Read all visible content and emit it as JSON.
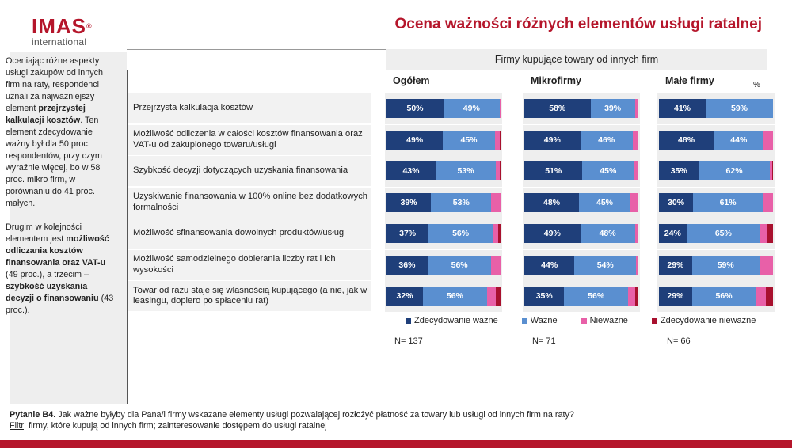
{
  "header": {
    "logo_main": "IMAS",
    "logo_reg": "®",
    "logo_sub": "international",
    "title": "Ocena ważności różnych elementów usługi ratalnej"
  },
  "sidebar": {
    "p1_a": "Oceniając różne aspekty usługi zakupów od innych firm na raty, respondenci uznali za najważniejszy element ",
    "p1_b": "przejrzystej kalkulacji kosztów",
    "p1_c": ". Ten element zdecydowanie ważny był dla 50 proc. respondentów, przy czym wyraźnie więcej, bo w 58 proc. mikro firm, w porównaniu do 41 proc. małych.",
    "p2_a": "Drugim w kolejności elementem jest ",
    "p2_b": "możliwość odliczania kosztów finansowania oraz VAT-u",
    "p2_c": " (49 proc.), a trzecim – ",
    "p2_d": "szybkość uzyskania decyzji o finansowaniu",
    "p2_e": " (43 proc.)."
  },
  "footnote": {
    "q_label": "Pytanie B4.",
    "q_text": " Jak ważne byłyby dla Pana/i firmy wskazane elementy usługi pozwalającej rozłożyć płatność za towary lub usługi od innych firm na raty?",
    "f_label": "Filtr",
    "f_text": ": firmy, które kupują od innych firm; zainteresowanie dostępem do usługi ratalnej"
  },
  "colors": {
    "dark_blue": "#1f3f7a",
    "light_blue": "#5a8fd0",
    "pink": "#e860a8",
    "dark_red": "#a8102e",
    "brand": "#b5162b"
  },
  "chart_data": {
    "type": "bar",
    "stacked": true,
    "orientation": "horizontal",
    "group_header": "Firmy kupujące towary od innych firm",
    "unit_label": "%",
    "categories": [
      "Przejrzysta kalkulacja kosztów",
      "Możliwość odliczenia w całości kosztów finansowania oraz VAT-u od zakupionego towaru/usługi",
      "Szybkość decyzji dotyczących uzyskania finansowania",
      "Uzyskiwanie finansowania w 100% online bez dodatkowych formalności",
      "Możliwość sfinansowania dowolnych produktów/usług",
      "Możliwość samodzielnego dobierania liczby rat i ich wysokości",
      "Towar od razu staje się własnością kupującego (a nie, jak w leasingu, dopiero po spłaceniu rat)"
    ],
    "legend": [
      "Zdecydowanie ważne",
      "Ważne",
      "Nieważne",
      "Zdecydowanie nieważne"
    ],
    "panels": [
      {
        "title": "Ogółem",
        "n": "N= 137",
        "values": [
          [
            50,
            49,
            1,
            0
          ],
          [
            49,
            45,
            4,
            1
          ],
          [
            43,
            53,
            3,
            1
          ],
          [
            39,
            53,
            8,
            0
          ],
          [
            37,
            56,
            5,
            2
          ],
          [
            36,
            56,
            8,
            0
          ],
          [
            32,
            56,
            8,
            4
          ]
        ]
      },
      {
        "title": "Mikrofirmy",
        "n": "N= 71",
        "values": [
          [
            58,
            39,
            3,
            0
          ],
          [
            49,
            46,
            5,
            0
          ],
          [
            51,
            45,
            4,
            0
          ],
          [
            48,
            45,
            7,
            0
          ],
          [
            49,
            48,
            3,
            0
          ],
          [
            44,
            54,
            2,
            0
          ],
          [
            35,
            56,
            6,
            3
          ]
        ]
      },
      {
        "title": "Małe firmy",
        "n": "N= 66",
        "values": [
          [
            41,
            59,
            0,
            0
          ],
          [
            48,
            44,
            8,
            0
          ],
          [
            35,
            62,
            2,
            1
          ],
          [
            30,
            61,
            9,
            0
          ],
          [
            24,
            65,
            6,
            5
          ],
          [
            29,
            59,
            12,
            0
          ],
          [
            29,
            56,
            9,
            6
          ]
        ]
      }
    ]
  }
}
